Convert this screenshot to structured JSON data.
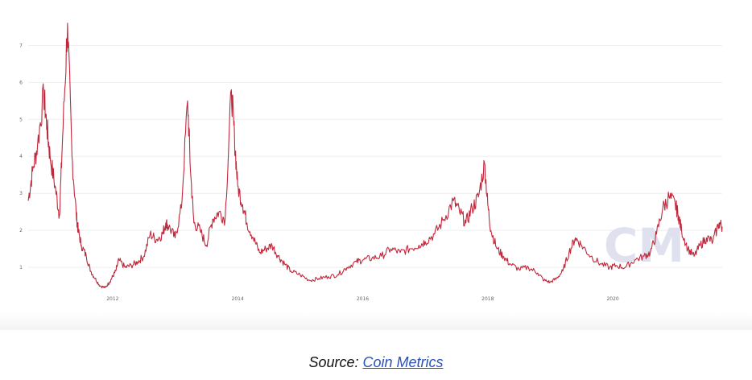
{
  "colors": {
    "line": "#c0283c",
    "watermark": "#dfe2ee"
  },
  "chart_data": {
    "type": "line",
    "title": "",
    "xlabel": "",
    "ylabel": "",
    "xlim": [
      2010.65,
      2021.75
    ],
    "ylim": [
      0.35,
      7.9
    ],
    "grid": true,
    "legend": "none",
    "x_ticks": [
      2012,
      2014,
      2016,
      2018,
      2020
    ],
    "x_tick_labels": [
      "2012",
      "2014",
      "2016",
      "2018",
      "2020"
    ],
    "y_ticks": [
      1,
      2,
      3,
      4,
      5,
      6,
      7
    ],
    "y_tick_labels": [
      "1",
      "2",
      "3",
      "4",
      "5",
      "6",
      "7"
    ],
    "series": [
      {
        "name": "",
        "x": [
          2010.65,
          2010.72,
          2010.8,
          2010.9,
          2010.95,
          2011.0,
          2011.08,
          2011.15,
          2011.2,
          2011.28,
          2011.35,
          2011.42,
          2011.45,
          2011.5,
          2011.58,
          2011.65,
          2011.72,
          2011.8,
          2011.88,
          2011.95,
          2012.0,
          2012.05,
          2012.1,
          2012.2,
          2012.3,
          2012.4,
          2012.5,
          2012.6,
          2012.7,
          2012.8,
          2012.85,
          2012.9,
          2013.0,
          2013.1,
          2013.2,
          2013.25,
          2013.3,
          2013.4,
          2013.5,
          2013.6,
          2013.7,
          2013.8,
          2013.9,
          2013.95,
          2014.0,
          2014.08,
          2014.15,
          2014.25,
          2014.35,
          2014.45,
          2014.55,
          2014.65,
          2014.75,
          2014.85,
          2015.0,
          2015.15,
          2015.3,
          2015.45,
          2015.6,
          2015.75,
          2015.9,
          2016.0,
          2016.15,
          2016.3,
          2016.45,
          2016.6,
          2016.75,
          2016.9,
          2017.0,
          2017.15,
          2017.3,
          2017.45,
          2017.55,
          2017.65,
          2017.75,
          2017.85,
          2017.95,
          2018.0,
          2018.05,
          2018.15,
          2018.25,
          2018.35,
          2018.5,
          2018.65,
          2018.8,
          2018.9,
          2019.0,
          2019.1,
          2019.2,
          2019.3,
          2019.4,
          2019.5,
          2019.65,
          2019.8,
          2019.95,
          2020.05,
          2020.2,
          2020.35,
          2020.5,
          2020.6,
          2020.7,
          2020.8,
          2020.9,
          2021.0,
          2021.05,
          2021.1,
          2021.2,
          2021.3,
          2021.4,
          2021.5,
          2021.6,
          2021.7,
          2021.75
        ],
        "y": [
          2.8,
          3.6,
          4.3,
          5.7,
          4.8,
          4.0,
          3.2,
          2.4,
          4.5,
          7.6,
          4.0,
          2.4,
          2.0,
          1.6,
          1.3,
          0.9,
          0.7,
          0.5,
          0.45,
          0.6,
          0.75,
          0.9,
          1.2,
          1.0,
          1.05,
          1.15,
          1.3,
          1.9,
          1.75,
          1.9,
          2.2,
          2.1,
          1.8,
          2.6,
          5.5,
          3.5,
          2.2,
          2.0,
          1.6,
          2.3,
          2.5,
          2.3,
          5.8,
          4.5,
          3.2,
          2.7,
          2.2,
          1.8,
          1.4,
          1.5,
          1.6,
          1.3,
          1.1,
          0.9,
          0.8,
          0.65,
          0.7,
          0.75,
          0.8,
          1.0,
          1.15,
          1.2,
          1.25,
          1.3,
          1.5,
          1.4,
          1.5,
          1.6,
          1.7,
          1.9,
          2.3,
          2.8,
          2.5,
          2.2,
          2.6,
          2.9,
          3.8,
          2.7,
          2.0,
          1.5,
          1.3,
          1.1,
          0.95,
          1.0,
          0.85,
          0.65,
          0.6,
          0.7,
          0.9,
          1.4,
          1.8,
          1.6,
          1.3,
          1.1,
          1.0,
          1.05,
          1.0,
          1.2,
          1.3,
          1.4,
          1.9,
          2.6,
          2.9,
          2.7,
          2.4,
          2.0,
          1.5,
          1.3,
          1.6,
          1.8,
          1.7,
          2.2,
          2.1
        ]
      }
    ],
    "watermark": "CM",
    "source_prefix": "Source: ",
    "source_link": "Coin Metrics"
  }
}
